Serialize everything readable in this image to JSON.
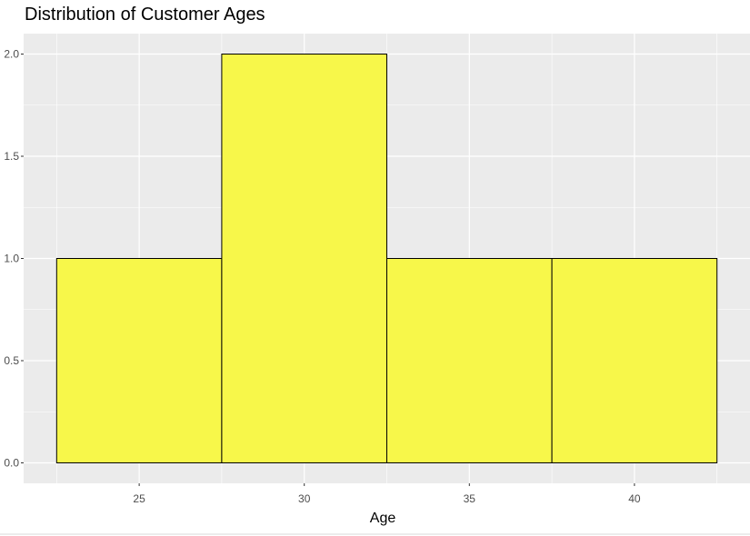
{
  "chart_data": {
    "type": "bar",
    "subtype": "histogram",
    "title": "Distribution of Customer Ages",
    "xlabel": "Age",
    "ylabel": "",
    "bins": [
      {
        "x0": 22.5,
        "x1": 27.5,
        "count": 1
      },
      {
        "x0": 27.5,
        "x1": 32.5,
        "count": 2
      },
      {
        "x0": 32.5,
        "x1": 37.5,
        "count": 1
      },
      {
        "x0": 37.5,
        "x1": 42.5,
        "count": 1
      }
    ],
    "xticks": [
      25,
      30,
      35,
      40
    ],
    "xtick_labels": [
      "25",
      "30",
      "35",
      "40"
    ],
    "yticks": [
      0,
      0.5,
      1,
      1.5,
      2
    ],
    "ytick_labels": [
      "0.0",
      "0.5",
      "1.0",
      "1.5",
      "2.0"
    ],
    "xlim": [
      21.5,
      43.5
    ],
    "ylim": [
      -0.1,
      2.1
    ],
    "grid": true,
    "legend": "none",
    "colors": {
      "bar_fill": "#f7f74a",
      "bar_stroke": "#000000",
      "panel_bg": "#ebebeb",
      "grid": "#ffffff"
    }
  }
}
